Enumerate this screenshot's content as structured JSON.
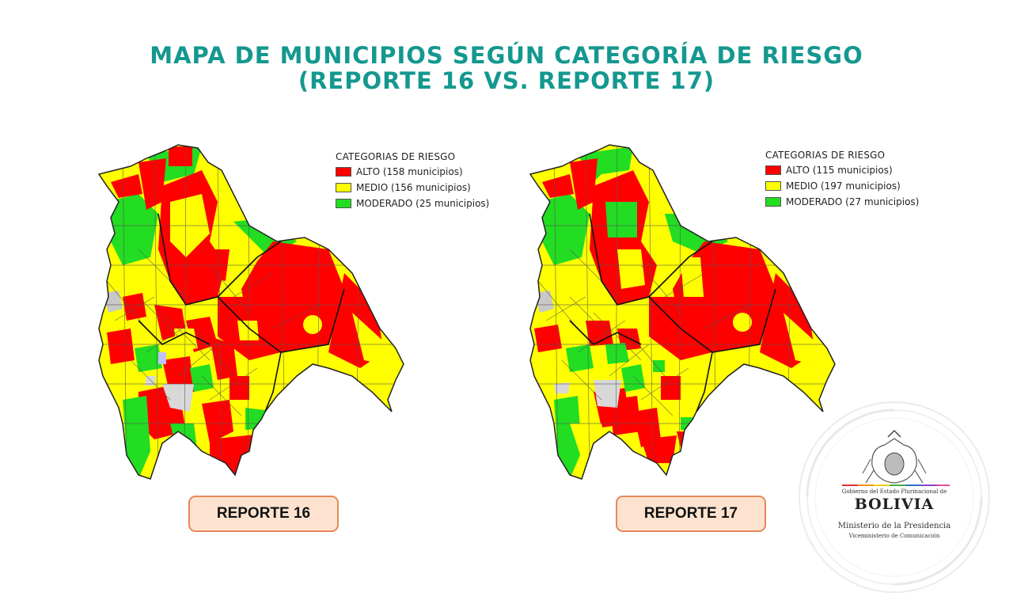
{
  "title": {
    "line1": "MAPA DE MUNICIPIOS SEGÚN CATEGORÍA DE RIESGO",
    "line2": "(REPORTE 16 VS. REPORTE 17)"
  },
  "colors": {
    "title": "#14988f",
    "alto": "#ff0000",
    "medio": "#ffff00",
    "moderado": "#22dd22",
    "lake": "#c8c8c8",
    "button_bg": "#fde3cf",
    "button_border": "#e8875a"
  },
  "maps": [
    {
      "legend_title": "CATEGORIAS DE RIESGO",
      "legend": [
        {
          "label": "ALTO (158 municipios)",
          "color": "#ff0000"
        },
        {
          "label": "MEDIO (156 municipios)",
          "color": "#ffff00"
        },
        {
          "label": "MODERADO (25 municipios)",
          "color": "#22dd22"
        }
      ],
      "button": "REPORTE 16"
    },
    {
      "legend_title": "CATEGORIAS DE RIESGO",
      "legend": [
        {
          "label": "ALTO (115 municipios)",
          "color": "#ff0000"
        },
        {
          "label": "MEDIO (197 municipios)",
          "color": "#ffff00"
        },
        {
          "label": "MODERADO (27 municipios)",
          "color": "#22dd22"
        }
      ],
      "button": "REPORTE 17"
    }
  ],
  "branding": {
    "line1": "Gobierno del Estado Plurinacional de",
    "line2": "BOLIVIA",
    "line3": "Ministerio de la Presidencia",
    "line4": "Viceministerio de Comunicación"
  }
}
